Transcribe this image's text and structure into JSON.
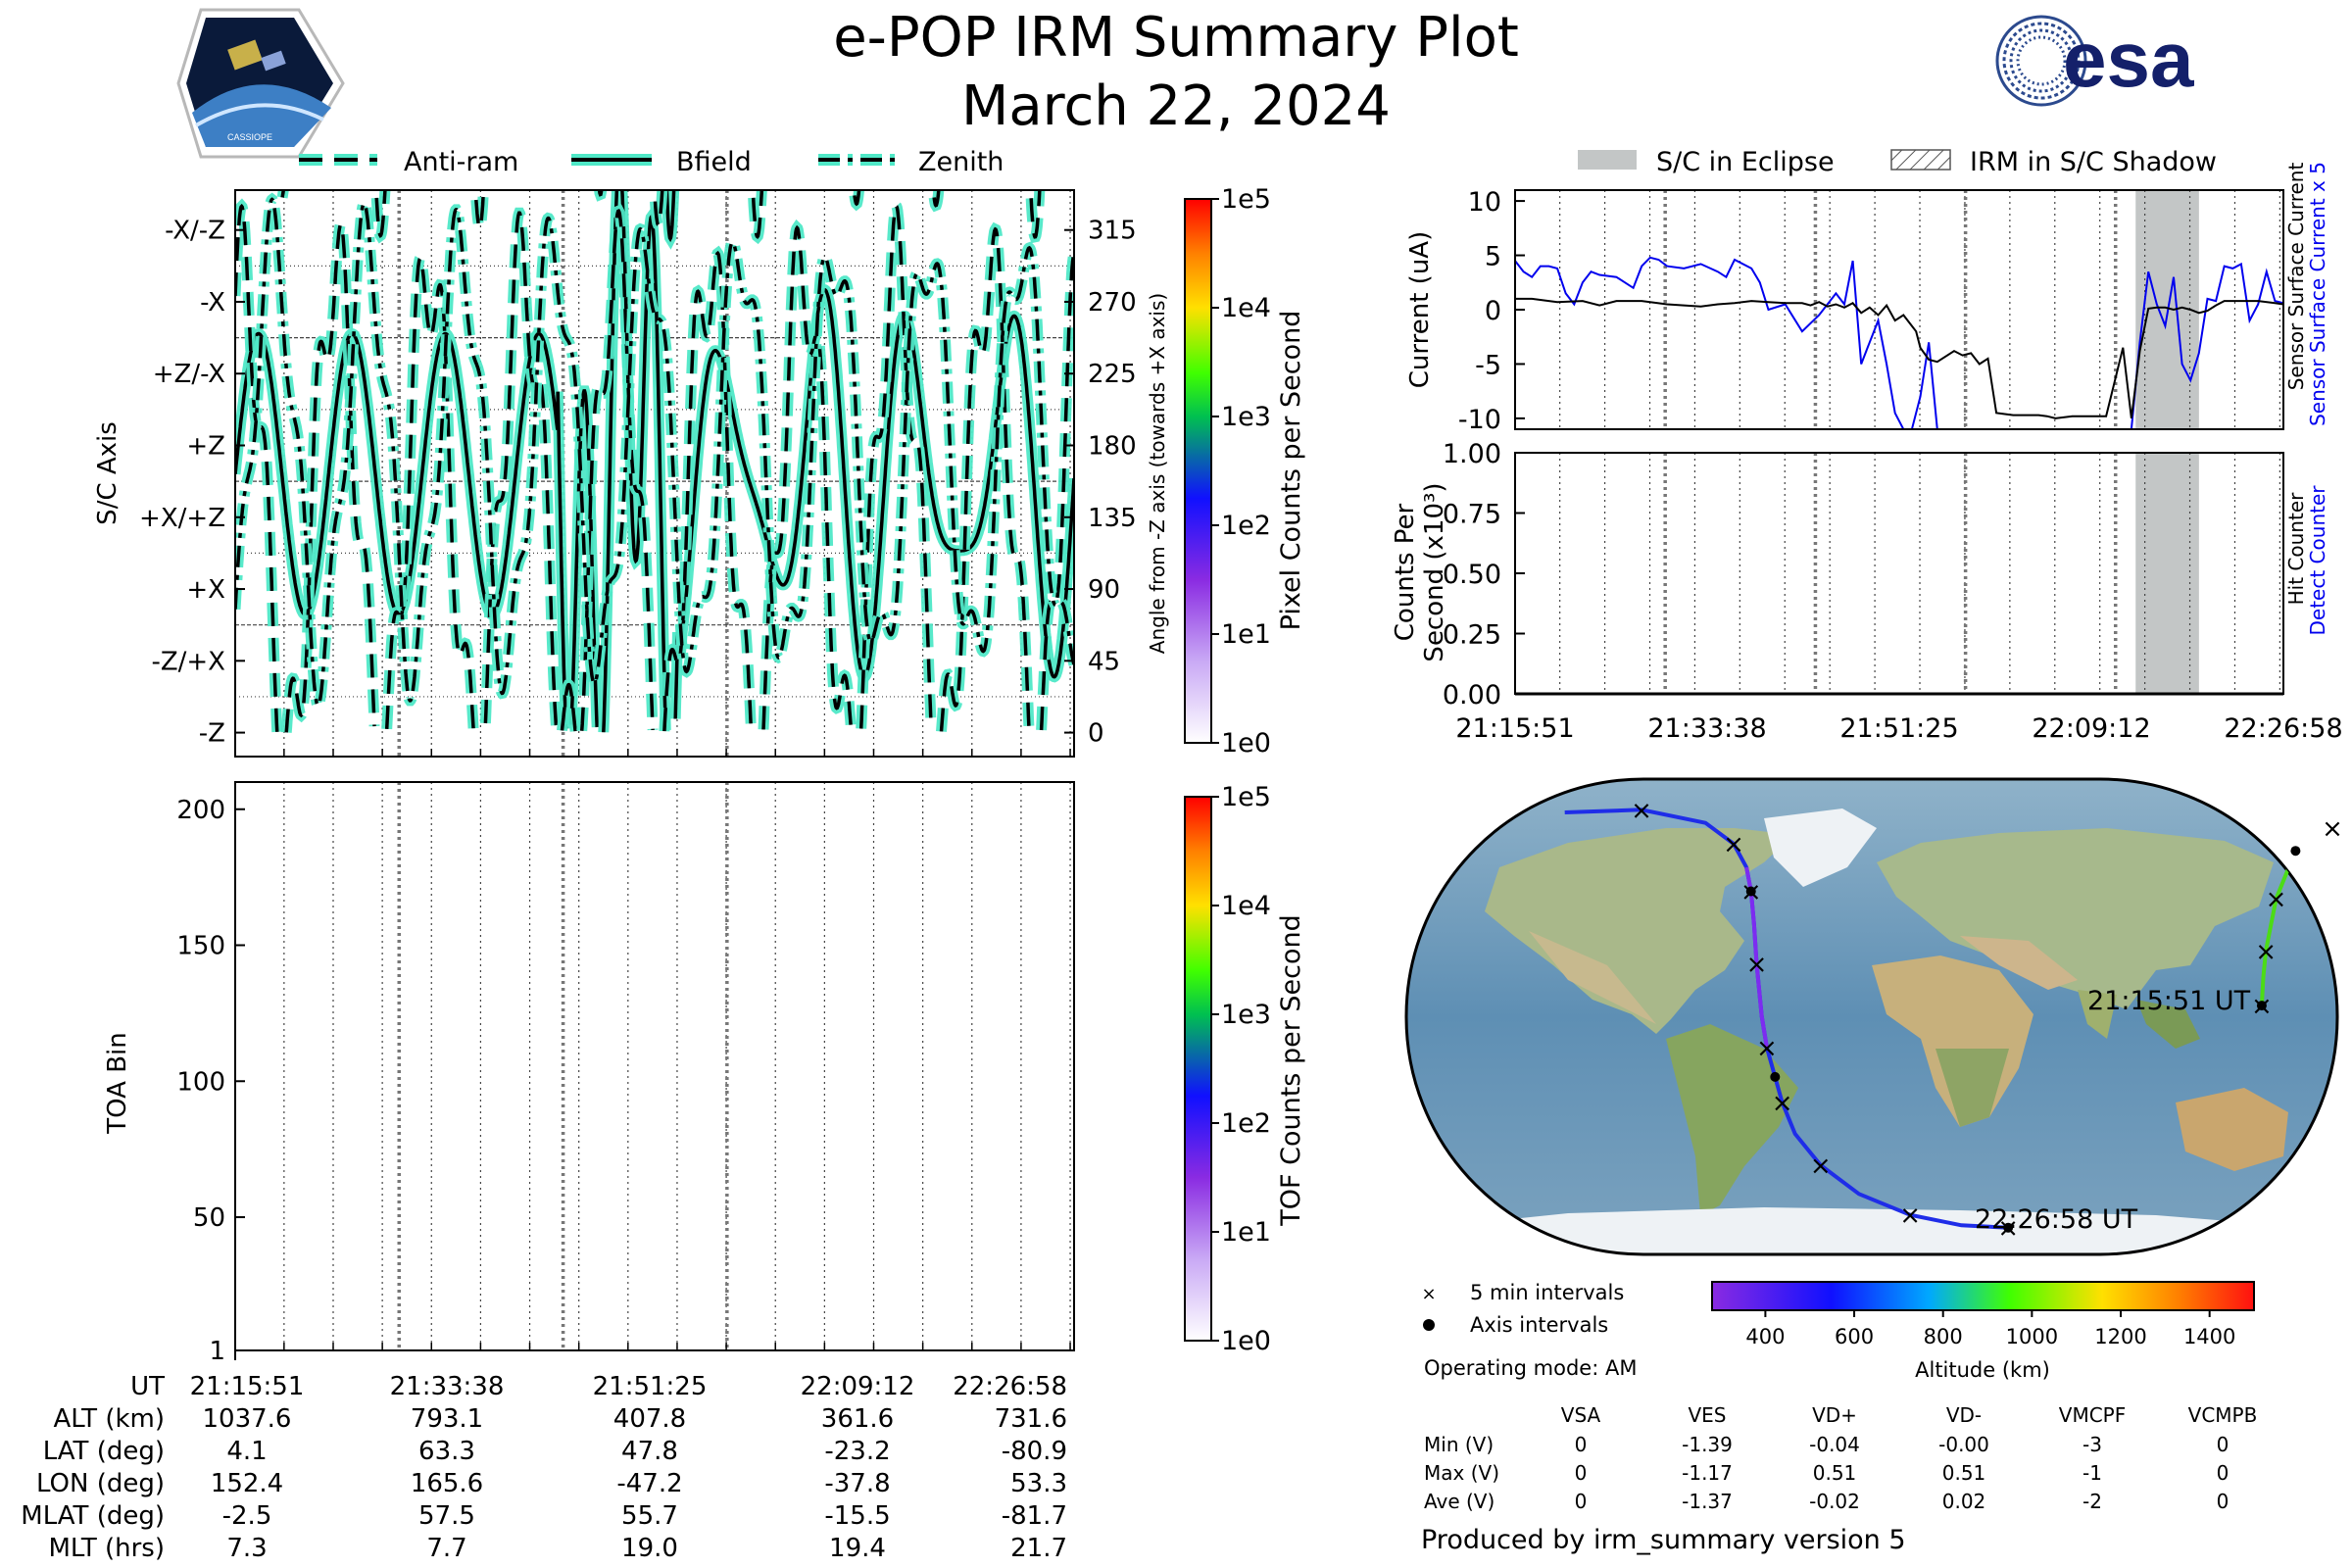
{
  "header": {
    "title": "e-POP IRM Summary Plot",
    "date": "March 22, 2024",
    "logo_left_text": "CASSIOPE",
    "logo_right_text": "esa"
  },
  "chart_data": [
    {
      "id": "axis-angles",
      "type": "line",
      "legend": [
        "Anti-ram",
        "Bfield",
        "Zenith"
      ],
      "legend_placement": "top",
      "ylabel": "S/C Axis",
      "y_tick_labels": [
        "-Z",
        "-Z/+X",
        "+X",
        "+X/+Z",
        "+Z",
        "+Z/-X",
        "-X",
        "-X/-Z"
      ],
      "y2label": "Angle from -Z axis (towards +X axis)",
      "y2_ticks": [
        0,
        45,
        90,
        135,
        180,
        225,
        270,
        315
      ],
      "ylim": [
        -15,
        340
      ],
      "colorbar": {
        "label": "Pixel Counts per Second",
        "ticks": [
          "1e0",
          "1e1",
          "1e2",
          "1e3",
          "1e4",
          "1e5"
        ]
      }
    },
    {
      "id": "toa",
      "type": "heatmap",
      "ylabel": "TOA Bin",
      "y_ticks": [
        1,
        50,
        100,
        150,
        200
      ],
      "ylim": [
        1,
        210
      ],
      "values": [],
      "colorbar": {
        "label": "TOF Counts per Second",
        "ticks": [
          "1e0",
          "1e1",
          "1e2",
          "1e3",
          "1e4",
          "1e5"
        ]
      }
    },
    {
      "id": "current",
      "type": "line",
      "legend": [
        "S/C in Eclipse",
        "IRM in S/C Shadow"
      ],
      "legend_placement": "top",
      "ylabel": "Current (uA)",
      "y_ticks": [
        10,
        5,
        0,
        -5,
        -10
      ],
      "ylim": [
        -11,
        11
      ],
      "right_labels": {
        "blue": "Sensor Surface Current x 5",
        "black": "Sensor Surface Current"
      },
      "eclipse_span_minutes": [
        73.5,
        81.0
      ],
      "series": [
        {
          "name": "Sensor Surface Current",
          "color": "#000000",
          "x": [
            0,
            2,
            5,
            8,
            10,
            12,
            15,
            18,
            20,
            22,
            24,
            26,
            28,
            30,
            32,
            33,
            34,
            35,
            36,
            37,
            38,
            39,
            40,
            41,
            42,
            43,
            44,
            45,
            46,
            47,
            47.5,
            48,
            49,
            50,
            52,
            53,
            54,
            55,
            56,
            57,
            58,
            59,
            60,
            61,
            62,
            63,
            64,
            66,
            68,
            70,
            72,
            73,
            74,
            75,
            76,
            77,
            78,
            79,
            80,
            81,
            82,
            83,
            84,
            86,
            88,
            90,
            91
          ],
          "y": [
            1,
            1,
            0.7,
            0.8,
            0.4,
            0.8,
            0.8,
            0.5,
            0.4,
            0.3,
            0.5,
            0.6,
            0.8,
            0.7,
            0.6,
            0.6,
            0.6,
            0.4,
            0.7,
            0.3,
            0.5,
            0.2,
            0.6,
            -0.3,
            0.2,
            -0.5,
            0.4,
            -1,
            -0.5,
            -1.5,
            -2,
            -3.5,
            -4.6,
            -4.8,
            -3.8,
            -4.2,
            -4,
            -5,
            -4.5,
            -9.5,
            -9.6,
            -9.7,
            -9.7,
            -9.7,
            -9.7,
            -9.8,
            -10,
            -9.8,
            -9.8,
            -9.8,
            -3.5,
            -10,
            -3.8,
            0.1,
            0.2,
            0.2,
            0,
            0.2,
            0,
            -0.3,
            -0.1,
            0.4,
            0.8,
            0.8,
            0.8,
            0.6,
            0.5
          ]
        },
        {
          "name": "Sensor Surface Current x 5",
          "color": "#0000ee",
          "x": [
            0,
            1,
            2,
            3,
            4,
            5,
            6,
            7,
            8,
            9,
            10,
            12,
            14,
            15,
            16,
            17,
            18,
            20,
            22,
            24,
            25,
            26,
            28,
            29,
            30,
            32,
            34,
            36,
            38,
            39,
            40,
            41,
            42,
            43,
            44,
            45,
            46,
            47,
            48,
            49,
            50,
            51,
            52,
            53,
            54,
            58,
            63,
            68,
            72,
            73,
            74,
            75,
            76,
            77,
            78,
            79,
            80,
            81,
            82,
            83,
            84,
            85,
            86,
            87,
            88,
            89,
            90,
            91
          ],
          "y": [
            4.5,
            3.5,
            3,
            4,
            4,
            3.8,
            1.5,
            0.5,
            2.5,
            3.5,
            3.2,
            3,
            2,
            4,
            4.8,
            4.6,
            4,
            3.8,
            4.2,
            3.5,
            3,
            4.6,
            3.8,
            2.5,
            0,
            0.5,
            -2,
            -0.5,
            1.5,
            0.5,
            4.5,
            -5,
            -3,
            -1,
            -5,
            -9.5,
            -11,
            -11,
            -8,
            -3,
            -11,
            -11,
            -11,
            -11,
            -11,
            -11,
            -11,
            -11,
            -11,
            -11,
            -3,
            3.5,
            0.5,
            -1.5,
            3,
            -5,
            -6.5,
            -4,
            1,
            0.8,
            4,
            3.8,
            4.2,
            -1,
            0.5,
            3.5,
            0.8,
            0.6
          ]
        }
      ]
    },
    {
      "id": "detector",
      "type": "line",
      "ylabel": "Counts Per Second (x10³)",
      "y_ticks": [
        "1.00",
        "0.75",
        "0.50",
        "0.25",
        "0.00"
      ],
      "ylim": [
        0,
        1
      ],
      "right_labels": {
        "blue": "Detect Counter",
        "black": "Hit Counter"
      },
      "x_tick_labels": [
        "21:15:51",
        "21:33:38",
        "21:51:25",
        "22:09:12",
        "22:26:58"
      ],
      "series": [
        {
          "name": "Detect Counter",
          "color": "#0000ee",
          "x": [
            0,
            91
          ],
          "y": [
            0,
            0
          ]
        },
        {
          "name": "Hit Counter",
          "color": "#000000",
          "x": [
            0,
            91
          ],
          "y": [
            0,
            0
          ]
        }
      ]
    }
  ],
  "time_axis": {
    "ticks": [
      "21:15:51",
      "21:33:38",
      "21:51:25",
      "22:09:12",
      "22:26:58"
    ]
  },
  "table": {
    "rows": [
      {
        "label": "UT",
        "values": [
          "21:15:51",
          "21:33:38",
          "21:51:25",
          "22:09:12",
          "22:26:58"
        ]
      },
      {
        "label": "ALT (km)",
        "values": [
          "1037.6",
          "793.1",
          "407.8",
          "361.6",
          "731.6"
        ]
      },
      {
        "label": "LAT (deg)",
        "values": [
          "4.1",
          "63.3",
          "47.8",
          "-23.2",
          "-80.9"
        ]
      },
      {
        "label": "LON (deg)",
        "values": [
          "152.4",
          "165.6",
          "-47.2",
          "-37.8",
          "53.3"
        ]
      },
      {
        "label": "MLAT (deg)",
        "values": [
          "-2.5",
          "57.5",
          "55.7",
          "-15.5",
          "-81.7"
        ]
      },
      {
        "label": "MLT (hrs)",
        "values": [
          "7.3",
          "7.7",
          "19.0",
          "19.4",
          "21.7"
        ]
      }
    ]
  },
  "map": {
    "start_label": "21:15:51 UT",
    "end_label": "22:26:58 UT",
    "legend_cross": "5 min intervals",
    "legend_dot": "Axis intervals",
    "operating_mode": "Operating mode: AM",
    "altitude_label": "Altitude (km)",
    "altitude_ticks": [
      "400",
      "600",
      "800",
      "1000",
      "1200",
      "1400"
    ],
    "altitude_range_km": [
      280,
      1500
    ],
    "track": [
      {
        "lon": 152.4,
        "lat": 4.1
      },
      {
        "lon": 153.0,
        "lat": 15.0
      },
      {
        "lon": 154.0,
        "lat": 25.0
      },
      {
        "lon": 156.0,
        "lat": 35.0
      },
      {
        "lon": 158.0,
        "lat": 45.0
      },
      {
        "lon": 165.6,
        "lat": 63.3
      },
      {
        "lon": 180.0,
        "lat": 72.0
      },
      {
        "lon": -120.0,
        "lat": 78.0
      },
      {
        "lon": -90.0,
        "lat": 79.0
      },
      {
        "lon": -65.0,
        "lat": 74.0
      },
      {
        "lon": -54.0,
        "lat": 66.0
      },
      {
        "lon": -49.0,
        "lat": 57.0
      },
      {
        "lon": -47.2,
        "lat": 47.8
      },
      {
        "lon": -46.0,
        "lat": 35.0
      },
      {
        "lon": -45.0,
        "lat": 20.0
      },
      {
        "lon": -43.0,
        "lat": 0.0
      },
      {
        "lon": -41.0,
        "lat": -12.0
      },
      {
        "lon": -37.8,
        "lat": -23.2
      },
      {
        "lon": -35.0,
        "lat": -33.0
      },
      {
        "lon": -30.0,
        "lat": -45.0
      },
      {
        "lon": -20.0,
        "lat": -57.0
      },
      {
        "lon": -5.0,
        "lat": -68.0
      },
      {
        "lon": 15.0,
        "lat": -76.0
      },
      {
        "lon": 35.0,
        "lat": -80.0
      },
      {
        "lon": 53.3,
        "lat": -80.9
      }
    ]
  },
  "voltage_table": {
    "columns": [
      "VSA",
      "VES",
      "VD+",
      "VD-",
      "VMCPF",
      "VCMPB"
    ],
    "rows": [
      {
        "label": "Min (V)",
        "values": [
          "0",
          "-1.39",
          "-0.04",
          "-0.00",
          "-3",
          "0"
        ]
      },
      {
        "label": "Max (V)",
        "values": [
          "0",
          "-1.17",
          "0.51",
          "0.51",
          "-1",
          "0"
        ]
      },
      {
        "label": "Ave (V)",
        "values": [
          "0",
          "-1.37",
          "-0.02",
          "0.02",
          "-2",
          "0"
        ]
      }
    ]
  },
  "footer": "Produced by irm_summary version 5",
  "colors": {
    "bfield_fill": "#4fe8c7",
    "eclipse": "#c3c6c6",
    "track_blue": "#1f2de8",
    "track_purple": "#7d2cf0",
    "track_green": "#4cdc16"
  }
}
